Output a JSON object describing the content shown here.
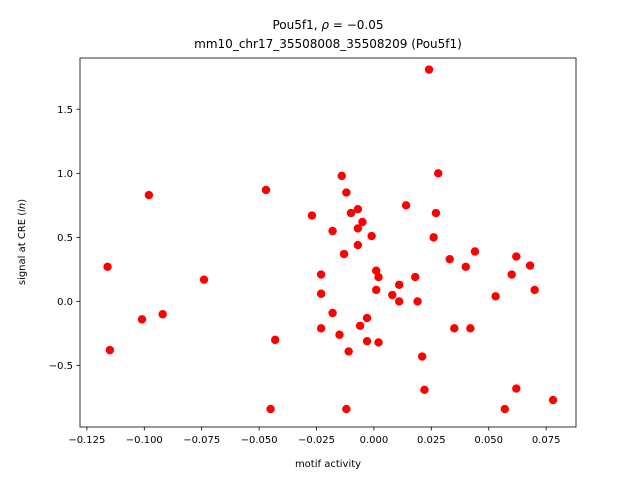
{
  "chart_data": {
    "type": "scatter",
    "title_line1_prefix": "Pou5f1, ",
    "title_line1_rho_symbol": "ρ",
    "title_line1_rho_rest": " = −0.05",
    "title_line2": "mm10_chr17_35508008_35508209 (Pou5f1)",
    "xlabel": "motif activity",
    "ylabel_prefix": "signal at CRE (",
    "ylabel_italic": "ln",
    "ylabel_suffix": ")",
    "xlim": [
      -0.128,
      0.088
    ],
    "ylim": [
      -0.98,
      1.9
    ],
    "xticks": [
      -0.125,
      -0.1,
      -0.075,
      -0.05,
      -0.025,
      0.0,
      0.025,
      0.05,
      0.075
    ],
    "xtick_labels": [
      "−0.125",
      "−0.100",
      "−0.075",
      "−0.050",
      "−0.025",
      "0.000",
      "0.025",
      "0.050",
      "0.075"
    ],
    "yticks": [
      -0.5,
      0.0,
      0.5,
      1.0,
      1.5
    ],
    "ytick_labels": [
      "−0.5",
      "0.0",
      "0.5",
      "1.0",
      "1.5"
    ],
    "marker_color": "#ff0000",
    "grid": false,
    "points": [
      {
        "x": -0.116,
        "y": 0.27
      },
      {
        "x": -0.115,
        "y": -0.38
      },
      {
        "x": -0.101,
        "y": -0.14
      },
      {
        "x": -0.098,
        "y": 0.83
      },
      {
        "x": -0.092,
        "y": -0.1
      },
      {
        "x": -0.074,
        "y": 0.17
      },
      {
        "x": -0.047,
        "y": 0.87
      },
      {
        "x": -0.045,
        "y": -0.84
      },
      {
        "x": -0.043,
        "y": -0.3
      },
      {
        "x": -0.027,
        "y": 0.67
      },
      {
        "x": -0.023,
        "y": 0.21
      },
      {
        "x": -0.023,
        "y": 0.06
      },
      {
        "x": -0.023,
        "y": -0.21
      },
      {
        "x": -0.018,
        "y": 0.55
      },
      {
        "x": -0.018,
        "y": -0.09
      },
      {
        "x": -0.015,
        "y": -0.26
      },
      {
        "x": -0.014,
        "y": 0.98
      },
      {
        "x": -0.013,
        "y": 0.37
      },
      {
        "x": -0.012,
        "y": 0.85
      },
      {
        "x": -0.012,
        "y": -0.84
      },
      {
        "x": -0.011,
        "y": -0.39
      },
      {
        "x": -0.01,
        "y": 0.69
      },
      {
        "x": -0.007,
        "y": 0.72
      },
      {
        "x": -0.007,
        "y": 0.57
      },
      {
        "x": -0.007,
        "y": 0.44
      },
      {
        "x": -0.006,
        "y": -0.19
      },
      {
        "x": -0.005,
        "y": 0.62
      },
      {
        "x": -0.003,
        "y": -0.13
      },
      {
        "x": -0.003,
        "y": -0.31
      },
      {
        "x": -0.001,
        "y": 0.51
      },
      {
        "x": 0.001,
        "y": 0.24
      },
      {
        "x": 0.001,
        "y": 0.09
      },
      {
        "x": 0.002,
        "y": 0.19
      },
      {
        "x": 0.002,
        "y": -0.32
      },
      {
        "x": 0.008,
        "y": 0.05
      },
      {
        "x": 0.011,
        "y": 0.13
      },
      {
        "x": 0.011,
        "y": 0.0
      },
      {
        "x": 0.014,
        "y": 0.75
      },
      {
        "x": 0.018,
        "y": 0.19
      },
      {
        "x": 0.019,
        "y": 0.0
      },
      {
        "x": 0.021,
        "y": -0.43
      },
      {
        "x": 0.022,
        "y": -0.69
      },
      {
        "x": 0.024,
        "y": 1.81
      },
      {
        "x": 0.026,
        "y": 0.5
      },
      {
        "x": 0.027,
        "y": 0.69
      },
      {
        "x": 0.028,
        "y": 1.0
      },
      {
        "x": 0.033,
        "y": 0.33
      },
      {
        "x": 0.035,
        "y": -0.21
      },
      {
        "x": 0.04,
        "y": 0.27
      },
      {
        "x": 0.042,
        "y": -0.21
      },
      {
        "x": 0.044,
        "y": 0.39
      },
      {
        "x": 0.053,
        "y": 0.04
      },
      {
        "x": 0.057,
        "y": -0.84
      },
      {
        "x": 0.06,
        "y": 0.21
      },
      {
        "x": 0.062,
        "y": 0.35
      },
      {
        "x": 0.062,
        "y": -0.68
      },
      {
        "x": 0.068,
        "y": 0.28
      },
      {
        "x": 0.07,
        "y": 0.09
      },
      {
        "x": 0.078,
        "y": -0.77
      }
    ]
  }
}
